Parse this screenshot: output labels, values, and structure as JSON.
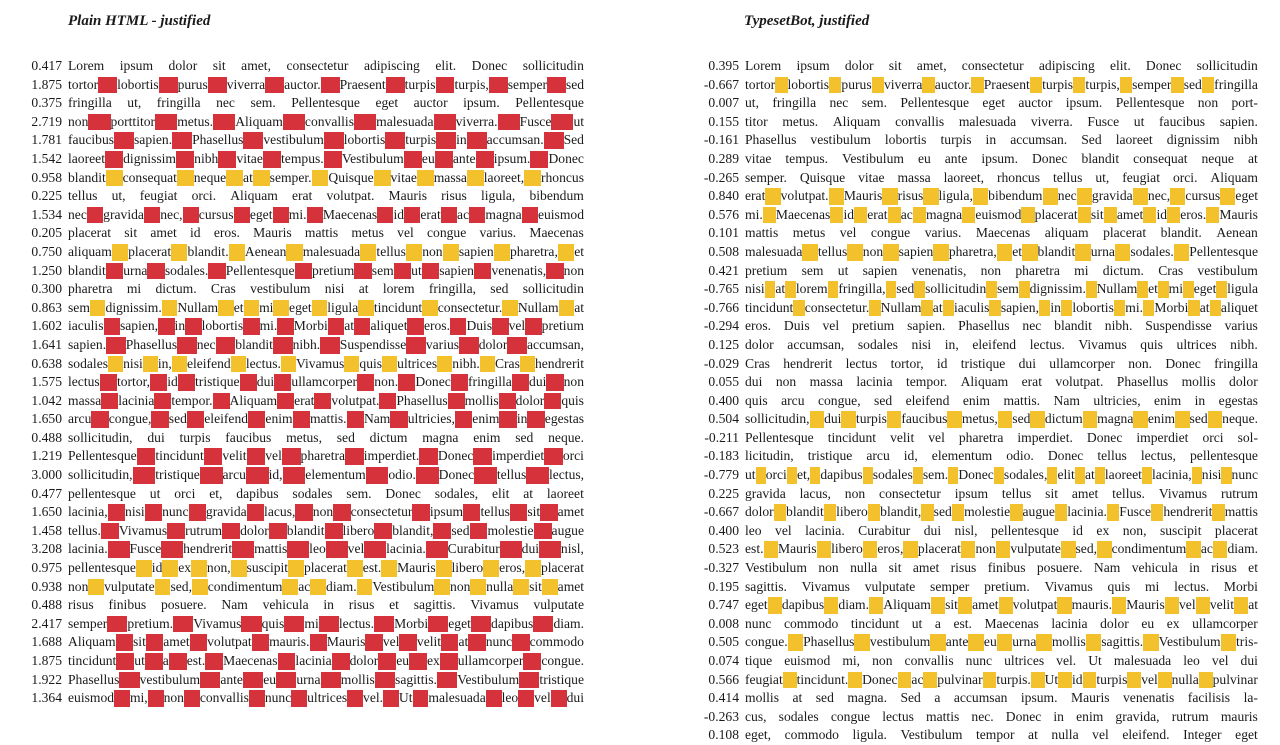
{
  "colors": {
    "loose_space_red": "#d6323c",
    "loose_space_yellow": "#f3c12b"
  },
  "left": {
    "title": "Plain HTML - justified",
    "lines": [
      {
        "badness": "0.417",
        "text": "Lorem ipsum dolor sit amet, consectetur adipiscing elit. Donec sollicitudin",
        "mark": "none"
      },
      {
        "badness": "1.875",
        "text": "tortor lobortis purus viverra auctor. Praesent turpis turpis, semper sed",
        "mark": "red"
      },
      {
        "badness": "0.375",
        "text": "fringilla ut, fringilla nec sem. Pellentesque eget auctor ipsum. Pellentesque",
        "mark": "none"
      },
      {
        "badness": "2.719",
        "text": "non porttitor metus. Aliquam convallis malesuada viverra. Fusce ut",
        "mark": "red"
      },
      {
        "badness": "1.781",
        "text": "faucibus sapien. Phasellus vestibulum lobortis turpis in accumsan. Sed",
        "mark": "red"
      },
      {
        "badness": "1.542",
        "text": "laoreet dignissim nibh vitae tempus. Vestibulum eu ante ipsum. Donec",
        "mark": "red"
      },
      {
        "badness": "0.958",
        "text": "blandit consequat neque at semper. Quisque vitae massa laoreet, rhoncus",
        "mark": "yellow"
      },
      {
        "badness": "0.225",
        "text": "tellus ut, feugiat orci. Aliquam erat volutpat. Mauris risus ligula, bibendum",
        "mark": "none"
      },
      {
        "badness": "1.534",
        "text": "nec gravida nec, cursus eget mi. Maecenas id erat ac magna euismod",
        "mark": "red"
      },
      {
        "badness": "0.205",
        "text": "placerat sit amet id eros. Mauris mattis metus vel congue varius. Maecenas",
        "mark": "none"
      },
      {
        "badness": "0.750",
        "text": "aliquam placerat blandit. Aenean malesuada tellus non sapien pharetra, et",
        "mark": "yellow"
      },
      {
        "badness": "1.250",
        "text": "blandit urna sodales. Pellentesque pretium sem ut sapien venenatis, non",
        "mark": "red"
      },
      {
        "badness": "0.300",
        "text": "pharetra mi dictum. Cras vestibulum nisi at lorem fringilla, sed sollicitudin",
        "mark": "none"
      },
      {
        "badness": "0.863",
        "text": "sem dignissim. Nullam et mi eget ligula tincidunt consectetur. Nullam at",
        "mark": "yellow"
      },
      {
        "badness": "1.602",
        "text": "iaculis sapien, in lobortis mi. Morbi at aliquet eros. Duis vel pretium",
        "mark": "red"
      },
      {
        "badness": "1.641",
        "text": "sapien. Phasellus nec blandit nibh. Suspendisse varius dolor accumsan,",
        "mark": "red"
      },
      {
        "badness": "0.638",
        "text": "sodales nisi in, eleifend lectus. Vivamus quis ultrices nibh. Cras hendrerit",
        "mark": "yellow"
      },
      {
        "badness": "1.575",
        "text": "lectus tortor, id tristique dui ullamcorper non. Donec fringilla dui non",
        "mark": "red"
      },
      {
        "badness": "1.042",
        "text": "massa lacinia tempor. Aliquam erat volutpat. Phasellus mollis dolor quis",
        "mark": "red"
      },
      {
        "badness": "1.650",
        "text": "arcu congue, sed eleifend enim mattis. Nam ultricies, enim in egestas",
        "mark": "red"
      },
      {
        "badness": "0.488",
        "text": "sollicitudin, dui turpis faucibus metus, sed dictum magna enim sed neque.",
        "mark": "none"
      },
      {
        "badness": "1.219",
        "text": "Pellentesque tincidunt velit vel pharetra imperdiet. Donec imperdiet orci",
        "mark": "red"
      },
      {
        "badness": "3.000",
        "text": "sollicitudin, tristique arcu id, elementum odio. Donec tellus lectus,",
        "mark": "red"
      },
      {
        "badness": "0.477",
        "text": "pellentesque ut orci et, dapibus sodales sem. Donec sodales, elit at laoreet",
        "mark": "none"
      },
      {
        "badness": "1.650",
        "text": "lacinia, nisi nunc gravida lacus, non consectetur ipsum tellus sit amet",
        "mark": "red"
      },
      {
        "badness": "1.458",
        "text": "tellus. Vivamus rutrum dolor blandit libero blandit, sed molestie augue",
        "mark": "red"
      },
      {
        "badness": "3.208",
        "text": "lacinia. Fusce hendrerit mattis leo vel lacinia. Curabitur dui nisl,",
        "mark": "red"
      },
      {
        "badness": "0.975",
        "text": "pellentesque id ex non, suscipit placerat est. Mauris libero eros, placerat",
        "mark": "yellow"
      },
      {
        "badness": "0.938",
        "text": "non vulputate sed, condimentum ac diam. Vestibulum non nulla sit amet",
        "mark": "yellow"
      },
      {
        "badness": "0.488",
        "text": "risus finibus posuere. Nam vehicula in risus et sagittis. Vivamus vulputate",
        "mark": "none"
      },
      {
        "badness": "2.417",
        "text": "semper pretium. Vivamus quis mi lectus. Morbi eget dapibus diam.",
        "mark": "red"
      },
      {
        "badness": "1.688",
        "text": "Aliquam sit amet volutpat mauris. Mauris vel velit at nunc commodo",
        "mark": "red"
      },
      {
        "badness": "1.875",
        "text": "tincidunt ut a est. Maecenas lacinia dolor eu ex ullamcorper congue.",
        "mark": "red"
      },
      {
        "badness": "1.922",
        "text": "Phasellus vestibulum ante eu urna mollis sagittis. Vestibulum tristique",
        "mark": "red"
      },
      {
        "badness": "1.364",
        "text": "euismod mi, non convallis nunc ultrices vel. Ut malesuada leo vel dui",
        "mark": "red"
      }
    ]
  },
  "right": {
    "title": "TypesetBot, justified",
    "lines": [
      {
        "badness": "0.395",
        "text": "Lorem ipsum dolor sit amet, consectetur adipiscing elit. Donec sollicitudin",
        "mark": "none"
      },
      {
        "badness": "-0.667",
        "text": "tortor lobortis purus viverra auctor. Praesent turpis turpis, semper sed fringilla",
        "mark": "yellow"
      },
      {
        "badness": "0.007",
        "text": "ut, fringilla nec sem. Pellentesque eget auctor ipsum. Pellentesque non port-",
        "mark": "none"
      },
      {
        "badness": "0.155",
        "text": "titor metus. Aliquam convallis malesuada viverra. Fusce ut faucibus sapien.",
        "mark": "none"
      },
      {
        "badness": "-0.161",
        "text": "Phasellus vestibulum lobortis turpis in accumsan. Sed laoreet dignissim nibh",
        "mark": "none"
      },
      {
        "badness": "0.289",
        "text": "vitae tempus. Vestibulum eu ante ipsum. Donec blandit consequat neque at",
        "mark": "none"
      },
      {
        "badness": "-0.265",
        "text": "semper. Quisque vitae massa laoreet, rhoncus tellus ut, feugiat orci. Aliquam",
        "mark": "none"
      },
      {
        "badness": "0.840",
        "text": "erat volutpat. Mauris risus ligula, bibendum nec gravida nec, cursus eget",
        "mark": "yellow"
      },
      {
        "badness": "0.576",
        "text": "mi. Maecenas id erat ac magna euismod placerat sit amet id eros. Mauris",
        "mark": "yellow"
      },
      {
        "badness": "0.101",
        "text": "mattis metus vel congue varius. Maecenas aliquam placerat blandit. Aenean",
        "mark": "none"
      },
      {
        "badness": "0.508",
        "text": "malesuada tellus non sapien pharetra, et blandit urna sodales. Pellentesque",
        "mark": "yellow"
      },
      {
        "badness": "0.421",
        "text": "pretium sem ut sapien venenatis, non pharetra mi dictum. Cras vestibulum",
        "mark": "none"
      },
      {
        "badness": "-0.765",
        "text": "nisi at lorem fringilla, sed sollicitudin sem dignissim. Nullam et mi eget ligula",
        "mark": "yellow"
      },
      {
        "badness": "-0.766",
        "text": "tincidunt consectetur. Nullam at iaculis sapien, in lobortis mi. Morbi at aliquet",
        "mark": "yellow"
      },
      {
        "badness": "-0.294",
        "text": "eros. Duis vel pretium sapien. Phasellus nec blandit nibh. Suspendisse varius",
        "mark": "none"
      },
      {
        "badness": "0.125",
        "text": "dolor accumsan, sodales nisi in, eleifend lectus. Vivamus quis ultrices nibh.",
        "mark": "none"
      },
      {
        "badness": "-0.029",
        "text": "Cras hendrerit lectus tortor, id tristique dui ullamcorper non. Donec fringilla",
        "mark": "none"
      },
      {
        "badness": "0.055",
        "text": "dui non massa lacinia tempor. Aliquam erat volutpat. Phasellus mollis dolor",
        "mark": "none"
      },
      {
        "badness": "0.400",
        "text": "quis arcu congue, sed eleifend enim mattis. Nam ultricies, enim in egestas",
        "mark": "none"
      },
      {
        "badness": "0.504",
        "text": "sollicitudin, dui turpis faucibus metus, sed dictum magna enim sed neque.",
        "mark": "yellow"
      },
      {
        "badness": "-0.211",
        "text": "Pellentesque tincidunt velit vel pharetra imperdiet. Donec imperdiet orci sol-",
        "mark": "none"
      },
      {
        "badness": "-0.183",
        "text": "licitudin, tristique arcu id, elementum odio. Donec tellus lectus, pellentesque",
        "mark": "none"
      },
      {
        "badness": "-0.779",
        "text": "ut orci et, dapibus sodales sem. Donec sodales, elit at laoreet lacinia, nisi nunc",
        "mark": "yellow"
      },
      {
        "badness": "0.225",
        "text": "gravida lacus, non consectetur ipsum tellus sit amet tellus. Vivamus rutrum",
        "mark": "none"
      },
      {
        "badness": "-0.667",
        "text": "dolor blandit libero blandit, sed molestie augue lacinia. Fusce hendrerit mattis",
        "mark": "yellow"
      },
      {
        "badness": "0.400",
        "text": "leo vel lacinia. Curabitur dui nisl, pellentesque id ex non, suscipit placerat",
        "mark": "none"
      },
      {
        "badness": "0.523",
        "text": "est. Mauris libero eros, placerat non vulputate sed, condimentum ac diam.",
        "mark": "yellow"
      },
      {
        "badness": "-0.327",
        "text": "Vestibulum non nulla sit amet risus finibus posuere. Nam vehicula in risus et",
        "mark": "none"
      },
      {
        "badness": "0.195",
        "text": "sagittis. Vivamus vulputate semper pretium. Vivamus quis mi lectus. Morbi",
        "mark": "none"
      },
      {
        "badness": "0.747",
        "text": "eget dapibus diam. Aliquam sit amet volutpat mauris. Mauris vel velit at",
        "mark": "yellow"
      },
      {
        "badness": "0.008",
        "text": "nunc commodo tincidunt ut a est. Maecenas lacinia dolor eu ex ullamcorper",
        "mark": "none"
      },
      {
        "badness": "0.505",
        "text": "congue. Phasellus vestibulum ante eu urna mollis sagittis. Vestibulum tris-",
        "mark": "yellow"
      },
      {
        "badness": "0.074",
        "text": "tique euismod mi, non convallis nunc ultrices vel. Ut malesuada leo vel dui",
        "mark": "none"
      },
      {
        "badness": "0.566",
        "text": "feugiat tincidunt. Donec ac pulvinar turpis. Ut id turpis vel nulla pulvinar",
        "mark": "yellow"
      },
      {
        "badness": "0.414",
        "text": "mollis at sed magna. Sed a accumsan ipsum. Mauris venenatis facilisis la-",
        "mark": "none"
      },
      {
        "badness": "-0.263",
        "text": "cus, sodales congue lectus mattis nec. Donec in enim gravida, rutrum mauris",
        "mark": "none"
      },
      {
        "badness": "0.108",
        "text": "eget, commodo ligula. Vestibulum tempor at nulla vel eleifend. Integer eget",
        "mark": "none"
      }
    ]
  }
}
